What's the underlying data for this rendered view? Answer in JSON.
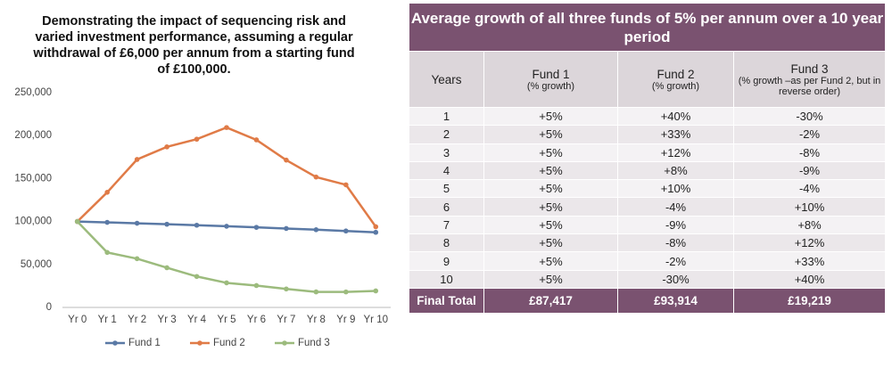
{
  "chart_data": {
    "type": "line",
    "title": "Demonstrating the impact of sequencing risk and varied investment performance, assuming a regular withdrawal of £6,000 per annum from a starting fund of £100,000.",
    "categories": [
      "Yr 0",
      "Yr 1",
      "Yr 2",
      "Yr 3",
      "Yr 4",
      "Yr 5",
      "Yr 6",
      "Yr 7",
      "Yr 8",
      "Yr 9",
      "Yr 10"
    ],
    "series": [
      {
        "name": "Fund 1",
        "color": "#5a79a5",
        "values": [
          100000,
          99000,
          97950,
          96848,
          95690,
          94475,
          93199,
          91859,
          90452,
          88974,
          87417
        ]
      },
      {
        "name": "Fund 2",
        "color": "#e07b47",
        "values": [
          100000,
          134000,
          172220,
          186886,
          195837,
          209421,
          195044,
          171490,
          151771,
          142736,
          93914
        ]
      },
      {
        "name": "Fund 3",
        "color": "#9cbb7d",
        "values": [
          100000,
          64000,
          56720,
          46182,
          36026,
          28585,
          25444,
          21479,
          18056,
          18015,
          19219
        ]
      }
    ],
    "ylim": [
      0,
      250000
    ],
    "yticks": [
      0,
      {
        "value": 50000,
        "label": "50,000"
      },
      {
        "value": 100000,
        "label": "100,000"
      },
      {
        "value": 150000,
        "label": "150,000"
      },
      {
        "value": 200000,
        "label": "200,000"
      },
      {
        "value": 250000,
        "label": "250,000"
      }
    ],
    "grid": false,
    "legend": "bottom"
  },
  "table": {
    "title": "Average growth of all three funds of 5% per annum over a 10 year period",
    "columns": [
      {
        "name": "Years"
      },
      {
        "name": "Fund 1",
        "note": "(% growth)"
      },
      {
        "name": "Fund 2",
        "note": "(% growth)"
      },
      {
        "name": "Fund 3",
        "note": "(% growth –as per Fund 2, but in reverse order)"
      }
    ],
    "rows": [
      [
        "1",
        "+5%",
        "+40%",
        "-30%"
      ],
      [
        "2",
        "+5%",
        "+33%",
        "-2%"
      ],
      [
        "3",
        "+5%",
        "+12%",
        "-8%"
      ],
      [
        "4",
        "+5%",
        "+8%",
        "-9%"
      ],
      [
        "5",
        "+5%",
        "+10%",
        "-4%"
      ],
      [
        "6",
        "+5%",
        "-4%",
        "+10%"
      ],
      [
        "7",
        "+5%",
        "-9%",
        "+8%"
      ],
      [
        "8",
        "+5%",
        "-8%",
        "+12%"
      ],
      [
        "9",
        "+5%",
        "-2%",
        "+33%"
      ],
      [
        "10",
        "+5%",
        "-30%",
        "+40%"
      ]
    ],
    "total": [
      "Final Total",
      "£87,417",
      "£93,914",
      "£19,219"
    ]
  }
}
